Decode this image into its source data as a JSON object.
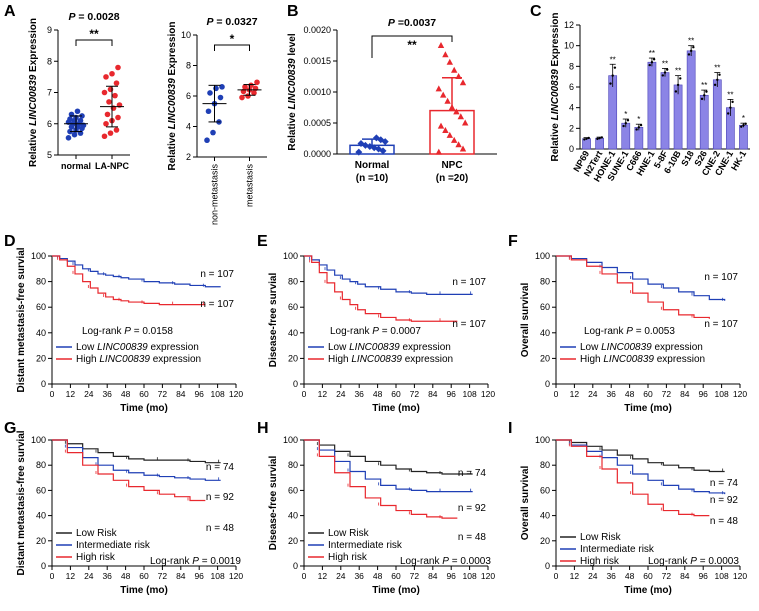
{
  "chart_data": [
    {
      "panel": "A",
      "subpanel": 1,
      "type": "scatter",
      "title": "P = 0.0028",
      "significance": "**",
      "ylabel": "Relative LINC00839 Expression",
      "ylim": [
        5,
        9
      ],
      "yticks": [
        5,
        6,
        7,
        8,
        9
      ],
      "categories": [
        "normal",
        "LA-NPC"
      ],
      "colors": [
        "#1f3fb5",
        "#e8282e"
      ],
      "summary": [
        {
          "mean": 6.0,
          "sd": 0.25
        },
        {
          "mean": 6.55,
          "sd": 0.65
        }
      ],
      "points": [
        [
          5.55,
          5.65,
          5.7,
          5.75,
          5.8,
          5.85,
          5.9,
          5.9,
          5.95,
          6.0,
          6.0,
          6.05,
          6.1,
          6.1,
          6.15,
          6.2,
          6.25,
          6.3,
          6.4
        ],
        [
          5.6,
          5.7,
          5.8,
          6.0,
          6.1,
          6.2,
          6.3,
          6.5,
          6.6,
          6.7,
          6.9,
          7.0,
          7.1,
          7.3,
          7.5,
          7.6,
          7.8
        ]
      ]
    },
    {
      "panel": "A",
      "subpanel": 2,
      "type": "scatter",
      "title": "P = 0.0327",
      "significance": "*",
      "ylabel": "Relative LINC00839 Expression",
      "ylim": [
        2,
        10
      ],
      "yticks": [
        2,
        4,
        6,
        8,
        10
      ],
      "categories": [
        "non-metastasis",
        "metastasis"
      ],
      "colors": [
        "#1f3fb5",
        "#e8282e"
      ],
      "summary": [
        {
          "mean": 5.5,
          "sd": 1.2
        },
        {
          "mean": 6.4,
          "sd": 0.35
        }
      ],
      "points": [
        [
          3.1,
          3.6,
          4.3,
          5.0,
          5.5,
          5.9,
          6.2,
          6.5,
          6.6
        ],
        [
          5.9,
          6.0,
          6.2,
          6.3,
          6.4,
          6.5,
          6.6,
          6.7,
          6.9
        ]
      ]
    },
    {
      "panel": "B",
      "type": "bar",
      "title": "P =0.0037",
      "significance": "**",
      "ylabel": "Relative LINC00839 level",
      "ylim": [
        0,
        0.002
      ],
      "yticks": [
        "0.0000",
        "0.0005",
        "0.0010",
        "0.0015",
        "0.0020"
      ],
      "categories": [
        "Normal",
        "NPC"
      ],
      "category_notes": [
        "(n =10)",
        "(n =20)"
      ],
      "colors": [
        "#1f3fb5",
        "#e8282e"
      ],
      "values": [
        0.00014,
        0.0007
      ],
      "sd": [
        0.0001,
        0.00053
      ],
      "points": [
        [
          3e-05,
          5e-05,
          8e-05,
          0.0001,
          0.00012,
          0.00014,
          0.00017,
          0.0002,
          0.00023,
          0.00026
        ],
        [
          3e-05,
          8e-05,
          0.00015,
          0.00022,
          0.0003,
          0.00038,
          0.00045,
          0.0005,
          0.0006,
          0.00068,
          0.00075,
          0.00085,
          0.00095,
          0.00105,
          0.00115,
          0.00125,
          0.00135,
          0.00148,
          0.0016,
          0.00175
        ]
      ]
    },
    {
      "panel": "C",
      "type": "bar",
      "ylabel": "Relative LINC00839 Expression",
      "ylim": [
        0,
        12
      ],
      "yticks": [
        0,
        2,
        4,
        6,
        8,
        10,
        12
      ],
      "categories": [
        "NP69",
        "N2Tert",
        "HONE-1",
        "SUNE-1",
        "C666",
        "HNE-1",
        "5-8F",
        "6-10B",
        "S18",
        "S26",
        "CNE-2",
        "CNE-1",
        "HK-1"
      ],
      "values": [
        1.0,
        1.05,
        7.1,
        2.5,
        2.1,
        8.4,
        7.4,
        6.2,
        9.5,
        5.2,
        6.7,
        4.0,
        2.3
      ],
      "sd": [
        0.1,
        0.1,
        1.1,
        0.4,
        0.3,
        0.4,
        0.4,
        0.9,
        0.5,
        0.5,
        0.7,
        0.8,
        0.2
      ],
      "significance": [
        "",
        "",
        "**",
        "*",
        "*",
        "**",
        "**",
        "**",
        "**",
        "**",
        "**",
        "**",
        "*"
      ],
      "color": "#8b84e6"
    },
    {
      "panel": "D",
      "type": "line",
      "kind": "kaplan-meier",
      "ylabel": "Distant metastasis-free survial",
      "xlabel": "Time (mo)",
      "xlim": [
        0,
        120
      ],
      "ylim": [
        0,
        100
      ],
      "xticks": [
        0,
        12,
        24,
        36,
        48,
        60,
        72,
        84,
        96,
        108,
        120
      ],
      "yticks": [
        0,
        20,
        40,
        60,
        80,
        100
      ],
      "stat_label": "Log-rank",
      "p_label": "P",
      "p_value": "= 0.0158",
      "series": [
        {
          "name": "Low",
          "legend_pre": "Low ",
          "legend_gene": "LINC00839",
          "legend_post": " expression",
          "n_label": "n = 107",
          "color": "#1f3fb5",
          "x": [
            0,
            5,
            10,
            15,
            20,
            25,
            30,
            35,
            40,
            45,
            50,
            60,
            70,
            80,
            90,
            100,
            110
          ],
          "y": [
            100,
            98,
            96,
            93,
            90,
            88,
            86,
            85,
            84,
            83,
            82,
            80,
            79,
            78,
            77,
            76,
            76
          ]
        },
        {
          "name": "High",
          "legend_pre": "High ",
          "legend_gene": "LINC00839",
          "legend_post": " expression",
          "n_label": "n = 107",
          "color": "#e8282e",
          "x": [
            0,
            5,
            10,
            15,
            20,
            25,
            30,
            35,
            40,
            45,
            50,
            60,
            70,
            80,
            90,
            100
          ],
          "y": [
            100,
            97,
            92,
            86,
            80,
            75,
            71,
            68,
            66,
            65,
            64,
            63,
            62,
            62,
            62,
            62
          ]
        }
      ]
    },
    {
      "panel": "E",
      "type": "line",
      "kind": "kaplan-meier",
      "ylabel": "Disease-free survial",
      "xlabel": "Time (mo)",
      "xlim": [
        0,
        120
      ],
      "ylim": [
        0,
        100
      ],
      "xticks": [
        0,
        12,
        24,
        36,
        48,
        60,
        72,
        84,
        96,
        108,
        120
      ],
      "yticks": [
        0,
        20,
        40,
        60,
        80,
        100
      ],
      "stat_label": "Log-rank",
      "p_label": "P",
      "p_value": "= 0.0007",
      "series": [
        {
          "name": "Low",
          "legend_pre": "Low ",
          "legend_gene": "LINC00839",
          "legend_post": " expression",
          "n_label": "n = 107",
          "color": "#1f3fb5",
          "x": [
            0,
            5,
            10,
            15,
            20,
            25,
            30,
            35,
            40,
            50,
            60,
            70,
            80,
            90,
            100,
            110
          ],
          "y": [
            100,
            97,
            93,
            89,
            85,
            82,
            80,
            78,
            76,
            74,
            72,
            71,
            70,
            70,
            70,
            70
          ]
        },
        {
          "name": "High",
          "legend_pre": "High ",
          "legend_gene": "LINC00839",
          "legend_post": " expression",
          "n_label": "n = 107",
          "color": "#e8282e",
          "x": [
            0,
            5,
            10,
            15,
            20,
            25,
            30,
            35,
            40,
            50,
            60,
            70,
            80,
            90,
            100
          ],
          "y": [
            100,
            95,
            87,
            79,
            72,
            66,
            62,
            58,
            55,
            52,
            50,
            49,
            49,
            49,
            49
          ]
        }
      ]
    },
    {
      "panel": "F",
      "type": "line",
      "kind": "kaplan-meier",
      "ylabel": "Overall survival",
      "xlabel": "Time (mo)",
      "xlim": [
        0,
        120
      ],
      "ylim": [
        0,
        100
      ],
      "xticks": [
        0,
        12,
        24,
        36,
        48,
        60,
        72,
        84,
        96,
        108,
        120
      ],
      "yticks": [
        0,
        20,
        40,
        60,
        80,
        100
      ],
      "stat_label": "Log-rank",
      "p_label": "P",
      "p_value": "= 0.0053",
      "series": [
        {
          "name": "Low",
          "legend_pre": "Low ",
          "legend_gene": "LINC00839",
          "legend_post": " expression",
          "n_label": "n = 107",
          "color": "#1f3fb5",
          "x": [
            0,
            10,
            20,
            30,
            40,
            50,
            60,
            70,
            80,
            90,
            100,
            110
          ],
          "y": [
            100,
            98,
            95,
            91,
            87,
            82,
            78,
            75,
            72,
            69,
            66,
            65
          ]
        },
        {
          "name": "High",
          "legend_pre": "High ",
          "legend_gene": "LINC00839",
          "legend_post": " expression",
          "n_label": "n = 107",
          "color": "#e8282e",
          "x": [
            0,
            10,
            20,
            30,
            40,
            50,
            60,
            70,
            80,
            90,
            100
          ],
          "y": [
            100,
            97,
            92,
            86,
            79,
            71,
            64,
            58,
            54,
            52,
            51
          ]
        }
      ]
    },
    {
      "panel": "G",
      "type": "line",
      "kind": "kaplan-meier",
      "ylabel": "Distant metastasis-free survial",
      "xlabel": "Time (mo)",
      "xlim": [
        0,
        120
      ],
      "ylim": [
        0,
        100
      ],
      "xticks": [
        0,
        12,
        24,
        36,
        48,
        60,
        72,
        84,
        96,
        108,
        120
      ],
      "yticks": [
        0,
        20,
        40,
        60,
        80,
        100
      ],
      "stat_label": "Log-rank",
      "p_label": "P",
      "p_value": "= 0.0019",
      "series": [
        {
          "name": "Low Risk",
          "legend_pre": "Low Risk",
          "n_label": "n = 74",
          "color": "#222222",
          "x": [
            0,
            10,
            20,
            30,
            40,
            50,
            60,
            70,
            80,
            90,
            100,
            110
          ],
          "y": [
            100,
            97,
            93,
            90,
            87,
            85,
            84,
            84,
            84,
            83,
            82,
            82
          ]
        },
        {
          "name": "Intermediate risk",
          "legend_pre": "Intermediate risk",
          "n_label": "n = 92",
          "color": "#1f3fb5",
          "x": [
            0,
            10,
            20,
            30,
            40,
            50,
            60,
            70,
            80,
            90,
            100,
            110
          ],
          "y": [
            100,
            94,
            86,
            80,
            76,
            74,
            72,
            71,
            70,
            69,
            68,
            68
          ]
        },
        {
          "name": "High risk",
          "legend_pre": "High risk",
          "n_label": "n = 48",
          "color": "#e8282e",
          "x": [
            0,
            10,
            20,
            30,
            40,
            50,
            60,
            70,
            80,
            90,
            100
          ],
          "y": [
            100,
            90,
            80,
            73,
            68,
            63,
            60,
            57,
            55,
            52,
            52
          ]
        }
      ]
    },
    {
      "panel": "H",
      "type": "line",
      "kind": "kaplan-meier",
      "ylabel": "Disease-free survial",
      "xlabel": "Time (mo)",
      "xlim": [
        0,
        120
      ],
      "ylim": [
        0,
        100
      ],
      "xticks": [
        0,
        12,
        24,
        36,
        48,
        60,
        72,
        84,
        96,
        108,
        120
      ],
      "yticks": [
        0,
        20,
        40,
        60,
        80,
        100
      ],
      "stat_label": "Log-rank",
      "p_label": "P",
      "p_value": "= 0.0003",
      "series": [
        {
          "name": "Low Risk",
          "legend_pre": "Low Risk",
          "n_label": "n = 74",
          "color": "#222222",
          "x": [
            0,
            10,
            20,
            30,
            40,
            50,
            60,
            70,
            80,
            90,
            100,
            110
          ],
          "y": [
            100,
            96,
            91,
            87,
            83,
            80,
            77,
            75,
            74,
            73,
            73,
            73
          ]
        },
        {
          "name": "Intermediate risk",
          "legend_pre": "Intermediate risk",
          "n_label": "n = 92",
          "color": "#1f3fb5",
          "x": [
            0,
            10,
            20,
            30,
            40,
            50,
            60,
            70,
            80,
            90,
            100,
            110
          ],
          "y": [
            100,
            92,
            83,
            75,
            69,
            64,
            61,
            60,
            59,
            59,
            59,
            59
          ]
        },
        {
          "name": "High risk",
          "legend_pre": "High risk",
          "n_label": "n = 48",
          "color": "#e8282e",
          "x": [
            0,
            10,
            20,
            30,
            40,
            50,
            60,
            70,
            80,
            90,
            100
          ],
          "y": [
            100,
            87,
            74,
            63,
            54,
            48,
            44,
            41,
            39,
            38,
            38
          ]
        }
      ]
    },
    {
      "panel": "I",
      "type": "line",
      "kind": "kaplan-meier",
      "ylabel": "Overall survival",
      "xlabel": "Time (mo)",
      "xlim": [
        0,
        120
      ],
      "ylim": [
        0,
        100
      ],
      "xticks": [
        0,
        12,
        24,
        36,
        48,
        60,
        72,
        84,
        96,
        108,
        120
      ],
      "yticks": [
        0,
        20,
        40,
        60,
        80,
        100
      ],
      "stat_label": "Log-rank",
      "p_label": "P",
      "p_value": "= 0.0003",
      "series": [
        {
          "name": "Low Risk",
          "legend_pre": "Low Risk",
          "n_label": "n = 74",
          "color": "#222222",
          "x": [
            0,
            10,
            20,
            30,
            40,
            50,
            60,
            70,
            80,
            90,
            100,
            110
          ],
          "y": [
            100,
            98,
            95,
            92,
            88,
            85,
            82,
            80,
            78,
            76,
            75,
            75
          ]
        },
        {
          "name": "Intermediate risk",
          "legend_pre": "Intermediate risk",
          "n_label": "n = 92",
          "color": "#1f3fb5",
          "x": [
            0,
            10,
            20,
            30,
            40,
            50,
            60,
            70,
            80,
            90,
            100,
            110
          ],
          "y": [
            100,
            96,
            91,
            86,
            80,
            73,
            68,
            64,
            61,
            59,
            58,
            57
          ]
        },
        {
          "name": "High risk",
          "legend_pre": "High risk",
          "n_label": "n = 48",
          "color": "#e8282e",
          "x": [
            0,
            10,
            20,
            30,
            40,
            50,
            60,
            70,
            80,
            90,
            100
          ],
          "y": [
            100,
            95,
            87,
            77,
            66,
            57,
            49,
            44,
            41,
            40,
            40
          ]
        }
      ]
    }
  ]
}
